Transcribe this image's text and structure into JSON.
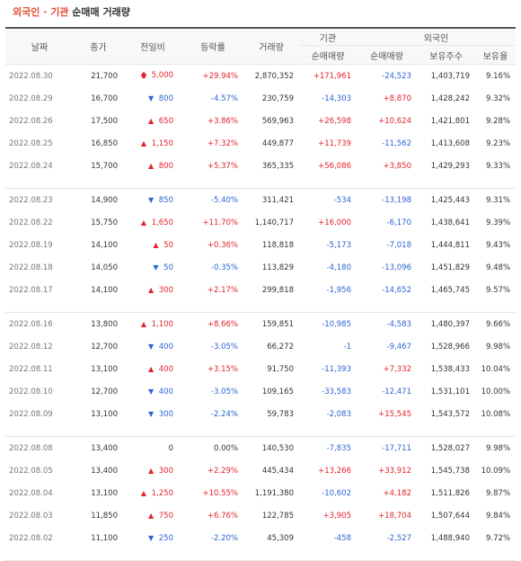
{
  "title": {
    "part1": "외국인 · 기관",
    "part2": "순매매 거래량"
  },
  "headers": {
    "date": "날짜",
    "close": "종가",
    "change": "전일비",
    "rate": "등락률",
    "volume": "거래량",
    "inst": "기관",
    "foreign": "외국인",
    "inst_net": "순매매량",
    "for_net": "순매매량",
    "for_hold": "보유주수",
    "for_ratio": "보유율"
  },
  "groups": [
    [
      {
        "date": "2022.08.30",
        "close": "21,700",
        "dir": "limit_up",
        "change": "5,000",
        "rate": "+29.94%",
        "volume": "2,870,352",
        "inst": "+171,961",
        "foreign": "-24,523",
        "hold": "1,403,719",
        "ratio": "9.16%"
      },
      {
        "date": "2022.08.29",
        "close": "16,700",
        "dir": "down",
        "change": "800",
        "rate": "-4.57%",
        "volume": "230,759",
        "inst": "-14,303",
        "foreign": "+8,870",
        "hold": "1,428,242",
        "ratio": "9.32%"
      },
      {
        "date": "2022.08.26",
        "close": "17,500",
        "dir": "up",
        "change": "650",
        "rate": "+3.86%",
        "volume": "569,963",
        "inst": "+26,598",
        "foreign": "+10,624",
        "hold": "1,421,801",
        "ratio": "9.28%"
      },
      {
        "date": "2022.08.25",
        "close": "16,850",
        "dir": "up",
        "change": "1,150",
        "rate": "+7.32%",
        "volume": "449,877",
        "inst": "+11,739",
        "foreign": "-11,562",
        "hold": "1,413,608",
        "ratio": "9.23%"
      },
      {
        "date": "2022.08.24",
        "close": "15,700",
        "dir": "up",
        "change": "800",
        "rate": "+5.37%",
        "volume": "365,335",
        "inst": "+56,086",
        "foreign": "+3,850",
        "hold": "1,429,293",
        "ratio": "9.33%"
      }
    ],
    [
      {
        "date": "2022.08.23",
        "close": "14,900",
        "dir": "down",
        "change": "850",
        "rate": "-5.40%",
        "volume": "311,421",
        "inst": "-534",
        "foreign": "-13,198",
        "hold": "1,425,443",
        "ratio": "9.31%"
      },
      {
        "date": "2022.08.22",
        "close": "15,750",
        "dir": "up",
        "change": "1,650",
        "rate": "+11.70%",
        "volume": "1,140,717",
        "inst": "+16,000",
        "foreign": "-6,170",
        "hold": "1,438,641",
        "ratio": "9.39%"
      },
      {
        "date": "2022.08.19",
        "close": "14,100",
        "dir": "up",
        "change": "50",
        "rate": "+0.36%",
        "volume": "118,818",
        "inst": "-5,173",
        "foreign": "-7,018",
        "hold": "1,444,811",
        "ratio": "9.43%"
      },
      {
        "date": "2022.08.18",
        "close": "14,050",
        "dir": "down",
        "change": "50",
        "rate": "-0.35%",
        "volume": "113,829",
        "inst": "-4,180",
        "foreign": "-13,096",
        "hold": "1,451,829",
        "ratio": "9.48%"
      },
      {
        "date": "2022.08.17",
        "close": "14,100",
        "dir": "up",
        "change": "300",
        "rate": "+2.17%",
        "volume": "299,818",
        "inst": "-1,956",
        "foreign": "-14,652",
        "hold": "1,465,745",
        "ratio": "9.57%"
      }
    ],
    [
      {
        "date": "2022.08.16",
        "close": "13,800",
        "dir": "up",
        "change": "1,100",
        "rate": "+8.66%",
        "volume": "159,851",
        "inst": "-10,985",
        "foreign": "-4,583",
        "hold": "1,480,397",
        "ratio": "9.66%"
      },
      {
        "date": "2022.08.12",
        "close": "12,700",
        "dir": "down",
        "change": "400",
        "rate": "-3.05%",
        "volume": "66,272",
        "inst": "-1",
        "foreign": "-9,467",
        "hold": "1,528,966",
        "ratio": "9.98%"
      },
      {
        "date": "2022.08.11",
        "close": "13,100",
        "dir": "up",
        "change": "400",
        "rate": "+3.15%",
        "volume": "91,750",
        "inst": "-11,393",
        "foreign": "+7,332",
        "hold": "1,538,433",
        "ratio": "10.04%"
      },
      {
        "date": "2022.08.10",
        "close": "12,700",
        "dir": "down",
        "change": "400",
        "rate": "-3.05%",
        "volume": "109,165",
        "inst": "-33,583",
        "foreign": "-12,471",
        "hold": "1,531,101",
        "ratio": "10.00%"
      },
      {
        "date": "2022.08.09",
        "close": "13,100",
        "dir": "down",
        "change": "300",
        "rate": "-2.24%",
        "volume": "59,783",
        "inst": "-2,083",
        "foreign": "+15,545",
        "hold": "1,543,572",
        "ratio": "10.08%"
      }
    ],
    [
      {
        "date": "2022.08.08",
        "close": "13,400",
        "dir": "flat",
        "change": "0",
        "rate": "0.00%",
        "volume": "140,530",
        "inst": "-7,835",
        "foreign": "-17,711",
        "hold": "1,528,027",
        "ratio": "9.98%"
      },
      {
        "date": "2022.08.05",
        "close": "13,400",
        "dir": "up",
        "change": "300",
        "rate": "+2.29%",
        "volume": "445,434",
        "inst": "+13,266",
        "foreign": "+33,912",
        "hold": "1,545,738",
        "ratio": "10.09%"
      },
      {
        "date": "2022.08.04",
        "close": "13,100",
        "dir": "up",
        "change": "1,250",
        "rate": "+10.55%",
        "volume": "1,191,380",
        "inst": "-10,602",
        "foreign": "+4,182",
        "hold": "1,511,826",
        "ratio": "9.87%"
      },
      {
        "date": "2022.08.03",
        "close": "11,850",
        "dir": "up",
        "change": "750",
        "rate": "+6.76%",
        "volume": "122,785",
        "inst": "+3,905",
        "foreign": "+18,704",
        "hold": "1,507,644",
        "ratio": "9.84%"
      },
      {
        "date": "2022.08.02",
        "close": "11,100",
        "dir": "down",
        "change": "250",
        "rate": "-2.20%",
        "volume": "45,309",
        "inst": "-458",
        "foreign": "-2,527",
        "hold": "1,488,940",
        "ratio": "9.72%"
      }
    ]
  ],
  "colors": {
    "up": "#e4232b",
    "down": "#2b64d6",
    "title_accent": "#e34b2f"
  },
  "icons": {
    "limit_up": "limit-up-arrow-icon",
    "up": "up-triangle-icon",
    "down": "down-triangle-icon"
  }
}
